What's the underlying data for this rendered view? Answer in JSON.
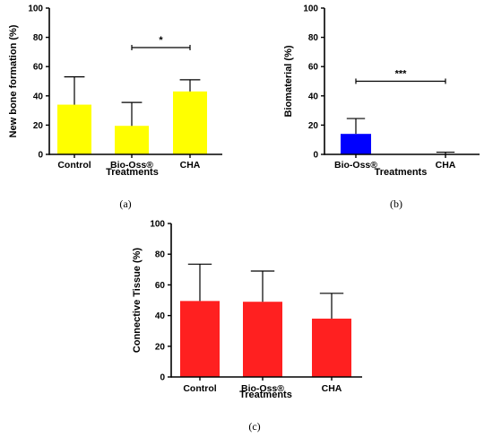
{
  "chart_data": [
    {
      "id": "a",
      "type": "bar",
      "panel_label": "(a)",
      "title": "",
      "xlabel": "Treatments",
      "ylabel": "New bone formation (%)",
      "ylim": [
        0,
        100
      ],
      "yticks": [
        "0",
        "20",
        "40",
        "60",
        "80",
        "100"
      ],
      "categories": [
        "Control",
        "Bio-Oss®",
        "CHA"
      ],
      "values": [
        34,
        19.5,
        43
      ],
      "errors": [
        19,
        16,
        8
      ],
      "bar_color": "#ffff00",
      "significance": [
        {
          "from": 1,
          "to": 2,
          "label": "*",
          "y": 73
        }
      ]
    },
    {
      "id": "b",
      "type": "bar",
      "panel_label": "(b)",
      "title": "",
      "xlabel": "Treatments",
      "ylabel": "Biomaterial (%)",
      "ylim": [
        0,
        100
      ],
      "yticks": [
        "0",
        "20",
        "40",
        "60",
        "80",
        "100"
      ],
      "categories": [
        "Bio-Oss®",
        "CHA"
      ],
      "values": [
        14,
        0
      ],
      "errors": [
        10.5,
        1.5
      ],
      "bar_color": "#0000ff",
      "significance": [
        {
          "from": 0,
          "to": 1,
          "label": "***",
          "y": 50
        }
      ]
    },
    {
      "id": "c",
      "type": "bar",
      "panel_label": "(c)",
      "title": "",
      "xlabel": "Treatments",
      "ylabel": "Connective Tissue (%)",
      "ylim": [
        0,
        100
      ],
      "yticks": [
        "0",
        "20",
        "40",
        "60",
        "80",
        "100"
      ],
      "categories": [
        "Control",
        "Bio-Oss®",
        "CHA"
      ],
      "values": [
        49.5,
        49,
        38
      ],
      "errors": [
        24,
        20,
        16.5
      ],
      "bar_color": "#ff2020",
      "significance": []
    }
  ]
}
